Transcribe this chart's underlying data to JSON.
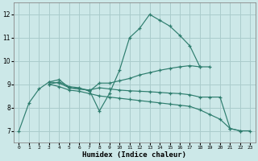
{
  "background_color": "#cce8e8",
  "grid_color": "#aacccc",
  "line_color": "#2e7d6e",
  "xlabel": "Humidex (Indice chaleur)",
  "xlim": [
    -0.5,
    23.5
  ],
  "ylim": [
    6.5,
    12.5
  ],
  "yticks": [
    7,
    8,
    9,
    10,
    11,
    12
  ],
  "xticks": [
    0,
    1,
    2,
    3,
    4,
    5,
    6,
    7,
    8,
    9,
    10,
    11,
    12,
    13,
    14,
    15,
    16,
    17,
    18,
    19,
    20,
    21,
    22,
    23
  ],
  "line1_x": [
    0,
    1,
    2,
    3,
    4,
    5,
    6,
    7,
    8,
    9,
    10,
    11,
    12,
    13,
    14,
    15,
    16,
    17,
    18
  ],
  "line1_y": [
    7.0,
    8.2,
    8.8,
    9.1,
    9.2,
    8.85,
    8.8,
    8.75,
    7.85,
    8.6,
    9.6,
    11.0,
    11.4,
    12.0,
    11.75,
    11.5,
    11.1,
    10.65,
    9.75
  ],
  "line2_x": [
    3,
    4,
    5,
    6,
    7,
    8,
    9,
    10,
    11,
    12,
    13,
    14,
    15,
    16,
    17,
    18,
    19
  ],
  "line2_y": [
    9.0,
    9.1,
    8.9,
    8.85,
    8.7,
    9.05,
    9.05,
    9.15,
    9.25,
    9.4,
    9.5,
    9.6,
    9.68,
    9.75,
    9.8,
    9.75,
    9.75
  ],
  "line3_x": [
    3,
    4,
    5,
    6,
    7,
    8,
    9,
    10,
    11,
    12,
    13,
    14,
    15,
    16,
    17,
    18,
    19,
    20,
    21,
    22
  ],
  "line3_y": [
    9.1,
    9.05,
    8.85,
    8.8,
    8.75,
    8.85,
    8.8,
    8.75,
    8.72,
    8.7,
    8.68,
    8.65,
    8.62,
    8.6,
    8.55,
    8.45,
    8.45,
    8.45,
    7.1,
    7.0
  ],
  "line4_x": [
    3,
    4,
    5,
    6,
    7,
    8,
    9,
    10,
    11,
    12,
    13,
    14,
    15,
    16,
    17,
    18,
    19,
    20,
    21,
    22,
    23
  ],
  "line4_y": [
    9.0,
    8.9,
    8.75,
    8.7,
    8.6,
    8.5,
    8.45,
    8.4,
    8.35,
    8.3,
    8.25,
    8.2,
    8.15,
    8.1,
    8.05,
    7.9,
    7.7,
    7.5,
    7.1,
    7.0,
    7.0
  ]
}
